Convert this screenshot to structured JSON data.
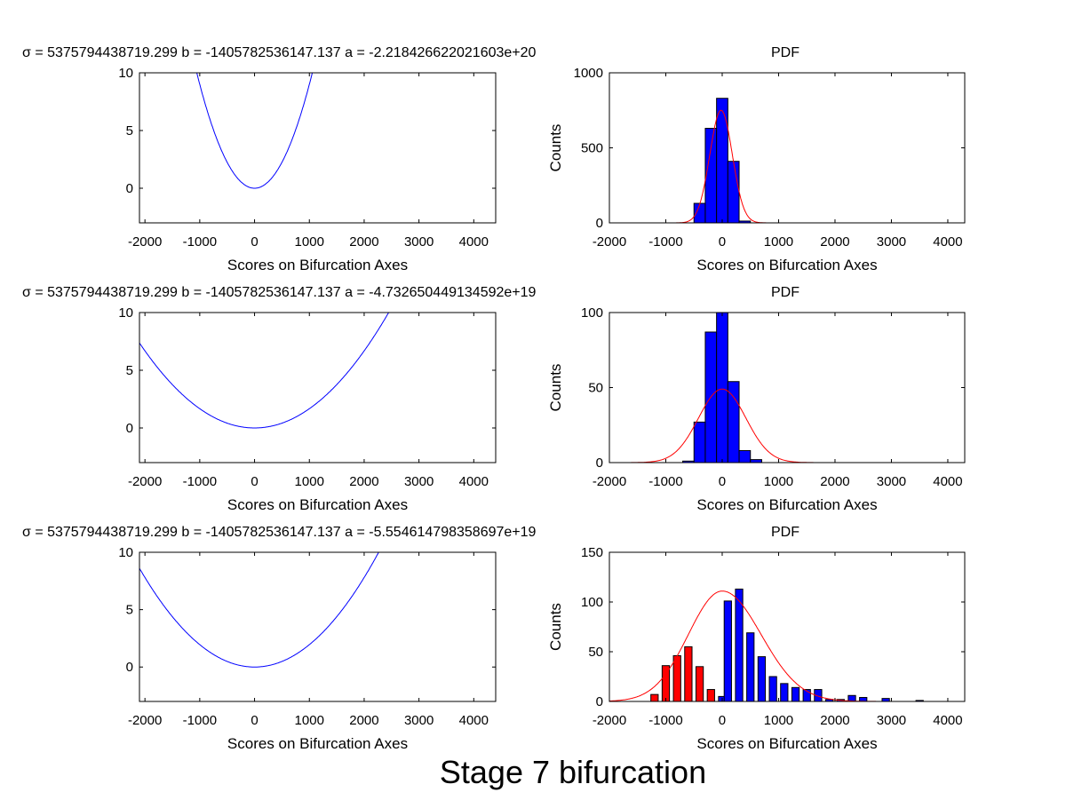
{
  "figure": {
    "suptitle": "Stage 7 bifurcation"
  },
  "chart_data": [
    {
      "type": "line",
      "title": "σ = 5375794438719.299  b = -1405782536147.137  a = -2.218426622021603e+20",
      "xlabel": "Scores on Bifurcation Axes",
      "ylabel": "",
      "xlim": [
        -2100,
        4400
      ],
      "ylim": [
        -3,
        10
      ],
      "xticks": [
        -2000,
        -1000,
        0,
        1000,
        2000,
        3000,
        4000
      ],
      "yticks": [
        0,
        5,
        10
      ],
      "grid": false,
      "series": [
        {
          "color": "#0000ff",
          "curve": "potential",
          "coef": 9e-06
        }
      ]
    },
    {
      "type": "bar",
      "title": "PDF",
      "xlabel": "Scores on Bifurcation Axes",
      "ylabel": "Counts",
      "xlim": [
        -2000,
        4300
      ],
      "ylim": [
        0,
        1000
      ],
      "xticks": [
        -2000,
        -1000,
        0,
        1000,
        2000,
        3000,
        4000
      ],
      "yticks": [
        0,
        500,
        1000
      ],
      "grid": false,
      "bar_width": 200,
      "series": [
        {
          "color": "#0000ff",
          "x": [
            -400,
            -200,
            0,
            200,
            400
          ],
          "values": [
            130,
            630,
            830,
            410,
            12
          ]
        }
      ],
      "fit": {
        "color": "#ff0000",
        "mean": -20,
        "sigma": 200,
        "peak": 750,
        "xrange": [
          -2000,
          2200
        ]
      }
    },
    {
      "type": "line",
      "title": "σ = 5375794438719.299  b = -1405782536147.137  a = -4.732650449134592e+19",
      "xlabel": "Scores on Bifurcation Axes",
      "ylabel": "",
      "xlim": [
        -2100,
        4400
      ],
      "ylim": [
        -3,
        10
      ],
      "xticks": [
        -2000,
        -1000,
        0,
        1000,
        2000,
        3000,
        4000
      ],
      "yticks": [
        0,
        5,
        10
      ],
      "grid": false,
      "series": [
        {
          "color": "#0000ff",
          "curve": "potential",
          "coef": 1.67e-06
        }
      ]
    },
    {
      "type": "bar",
      "title": "PDF",
      "xlabel": "Scores on Bifurcation Axes",
      "ylabel": "Counts",
      "xlim": [
        -2000,
        4300
      ],
      "ylim": [
        0,
        100
      ],
      "xticks": [
        -2000,
        -1000,
        0,
        1000,
        2000,
        3000,
        4000
      ],
      "yticks": [
        0,
        50,
        100
      ],
      "grid": false,
      "bar_width": 200,
      "series": [
        {
          "color": "#0000ff",
          "x": [
            -600,
            -400,
            -200,
            0,
            200,
            400,
            600,
            800
          ],
          "values": [
            1,
            27,
            87,
            100,
            54,
            8,
            2,
            0
          ]
        }
      ],
      "fit": {
        "color": "#ff0000",
        "mean": 0,
        "sigma": 420,
        "peak": 49,
        "xrange": [
          -2000,
          4300
        ]
      }
    },
    {
      "type": "line",
      "title": "σ = 5375794438719.299  b = -1405782536147.137  a = -5.554614798358697e+19",
      "xlabel": "Scores on Bifurcation Axes",
      "ylabel": "",
      "xlim": [
        -2100,
        4400
      ],
      "ylim": [
        -3,
        10
      ],
      "xticks": [
        -2000,
        -1000,
        0,
        1000,
        2000,
        3000,
        4000
      ],
      "yticks": [
        0,
        5,
        10
      ],
      "grid": false,
      "series": [
        {
          "color": "#0000ff",
          "curve": "potential",
          "coef": 1.95e-06
        }
      ]
    },
    {
      "type": "bar",
      "title": "PDF",
      "xlabel": "Scores on Bifurcation Axes",
      "ylabel": "Counts",
      "xlim": [
        -2000,
        4300
      ],
      "ylim": [
        0,
        150
      ],
      "xticks": [
        -2000,
        -1000,
        0,
        1000,
        2000,
        3000,
        4000
      ],
      "yticks": [
        0,
        50,
        100,
        150
      ],
      "grid": false,
      "bar_width": 130,
      "series": [
        {
          "color": "#ff0000",
          "x": [
            -1200,
            -1000,
            -800,
            -600,
            -400,
            -200
          ],
          "values": [
            7,
            36,
            46,
            55,
            35,
            12
          ]
        },
        {
          "color": "#0000ff",
          "x": [
            0,
            100,
            300,
            500,
            700,
            900,
            1100,
            1300,
            1500,
            1700,
            1900,
            2100,
            2300,
            2500,
            2900,
            3500
          ],
          "values": [
            5,
            101,
            113,
            69,
            45,
            25,
            18,
            14,
            12,
            12,
            2,
            2,
            6,
            4,
            3,
            1
          ]
        }
      ],
      "fit": {
        "color": "#ff0000",
        "mean": 0,
        "sigma": 600,
        "peak": 111,
        "xrange": [
          -2000,
          4300
        ],
        "skew_tail": true
      }
    }
  ]
}
